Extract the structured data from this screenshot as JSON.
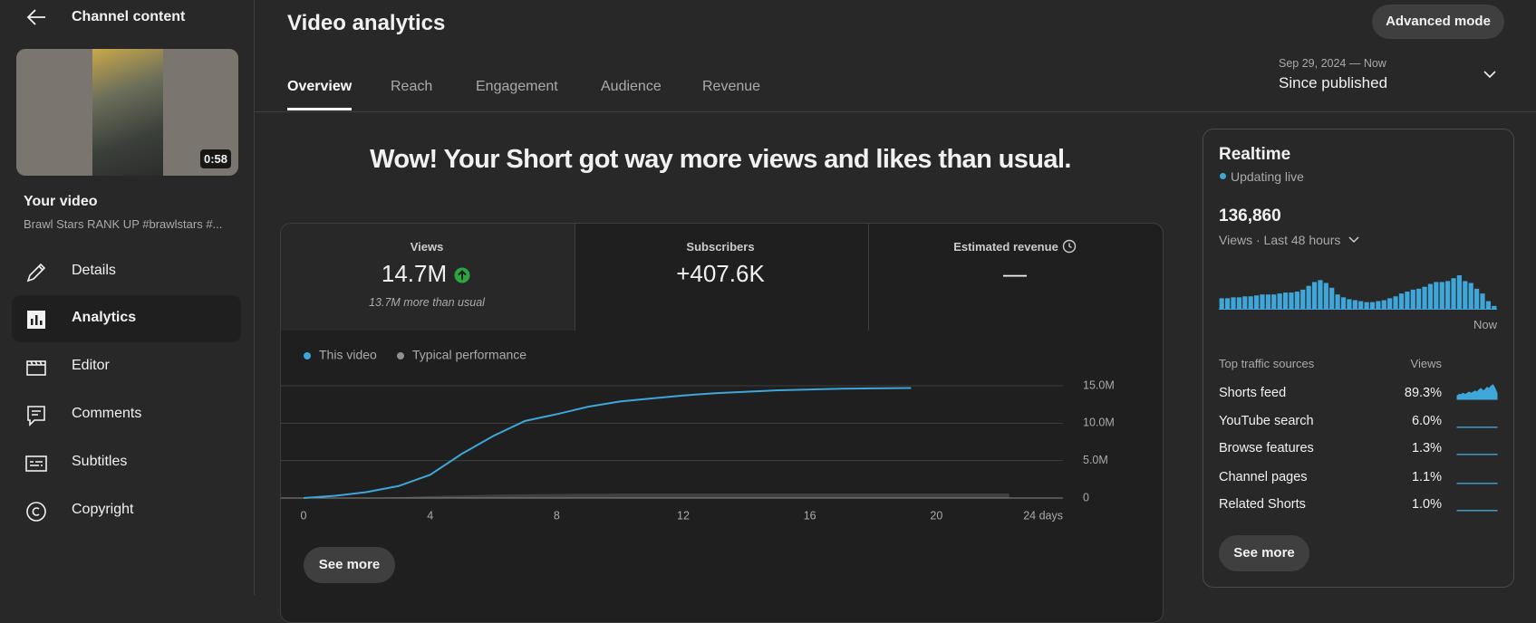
{
  "sidebar": {
    "back_title": "Channel content",
    "thumbnail_duration": "0:58",
    "video_heading": "Your video",
    "video_title": "Brawl Stars RANK UP #brawlstars #...",
    "nav": [
      "Details",
      "Analytics",
      "Editor",
      "Comments",
      "Subtitles",
      "Copyright"
    ],
    "selected": "Analytics"
  },
  "header": {
    "title": "Video analytics",
    "advanced_button": "Advanced mode",
    "tabs": [
      "Overview",
      "Reach",
      "Engagement",
      "Audience",
      "Revenue"
    ],
    "active_tab": "Overview",
    "date_range": "Sep 29, 2024 — Now",
    "period": "Since published"
  },
  "headline": "Wow! Your Short got way more views and likes than usual.",
  "metrics": [
    {
      "label": "Views",
      "value": "14.7M",
      "note": "13.7M more than usual"
    },
    {
      "label": "Subscribers",
      "value": "+407.6K"
    },
    {
      "label": "Estimated revenue",
      "value": "—"
    }
  ],
  "see_more": "See more",
  "realtime": {
    "title": "Realtime",
    "status": "Updating live",
    "total": "136,860",
    "period": "Views · Last 48 hours",
    "now_label": "Now",
    "sources_title": "Top traffic sources",
    "sources_value_header": "Views",
    "sources": [
      {
        "name": "Shorts feed",
        "share": "89.3%",
        "trend": [
          3,
          4,
          4,
          5,
          4,
          5,
          6,
          5,
          6,
          7,
          6,
          8,
          9,
          7,
          8,
          10,
          9,
          11,
          12,
          9,
          5
        ]
      },
      {
        "name": "YouTube search",
        "share": "6.0%",
        "trend": [
          0.3,
          0.3,
          0.3,
          0.3,
          0.3,
          0.3,
          0.3,
          0.3
        ]
      },
      {
        "name": "Browse features",
        "share": "1.3%",
        "trend": [
          0.3,
          0.3,
          0.3,
          0.3,
          0.3,
          0.3,
          0.3,
          0.3
        ]
      },
      {
        "name": "Channel pages",
        "share": "1.1%",
        "trend": [
          0.3,
          0.3,
          0.3,
          0.3,
          0.3,
          0.3,
          0.3,
          0.3
        ]
      },
      {
        "name": "Related Shorts",
        "share": "1.0%",
        "trend": [
          0.3,
          0.3,
          0.3,
          0.3,
          0.3,
          0.3,
          0.3,
          0.3
        ]
      }
    ],
    "trend_color": "#3ea6d9",
    "see_more": "See more"
  },
  "chart_data": [
    {
      "type": "line",
      "x": [
        0,
        1,
        2,
        3,
        4,
        5,
        6,
        7,
        8,
        9,
        10,
        11,
        12,
        13,
        14,
        15,
        16,
        17,
        18,
        19.2,
        22.3
      ],
      "series": [
        {
          "name": "This video",
          "color": "#3ea6d9",
          "values": [
            0,
            300000,
            800000,
            1600000,
            3100000,
            5900000,
            8300000,
            10300000,
            11200000,
            12200000,
            12900000,
            13300000,
            13700000,
            14000000,
            14200000,
            14400000,
            14500000,
            14600000,
            14650000,
            14700000,
            null
          ]
        },
        {
          "name": "Typical performance",
          "color": "#909090",
          "fill": true,
          "values": [
            0,
            20000,
            50000,
            100000,
            250000,
            350000,
            450000,
            500000,
            550000,
            580000,
            600000,
            600000,
            600000,
            600000,
            600000,
            600000,
            600000,
            600000,
            600000,
            600000,
            600000
          ]
        }
      ],
      "xlim": [
        0,
        24
      ],
      "xticks": [
        0,
        4,
        8,
        12,
        16,
        20,
        {
          "value": 24,
          "label": "24 days"
        }
      ],
      "ylim": [
        0,
        15000000
      ],
      "yticks": [
        0,
        {
          "value": 5000000,
          "label": "5.0M"
        },
        {
          "value": 10000000,
          "label": "10.0M"
        },
        {
          "value": 15000000,
          "label": "15.0M"
        }
      ],
      "grid": true
    },
    {
      "type": "bar",
      "color": "#3ea6d9",
      "ylim": [
        0,
        36
      ],
      "values": [
        11,
        11,
        12,
        12,
        13,
        13,
        14,
        15,
        15,
        15,
        16,
        17,
        17,
        18,
        20,
        24,
        28,
        30,
        27,
        22,
        15,
        12,
        10,
        9,
        8,
        7,
        7,
        8,
        9,
        11,
        13,
        16,
        18,
        20,
        21,
        23,
        26,
        28,
        28,
        29,
        32,
        35,
        29,
        27,
        21,
        16,
        8,
        3
      ]
    }
  ]
}
